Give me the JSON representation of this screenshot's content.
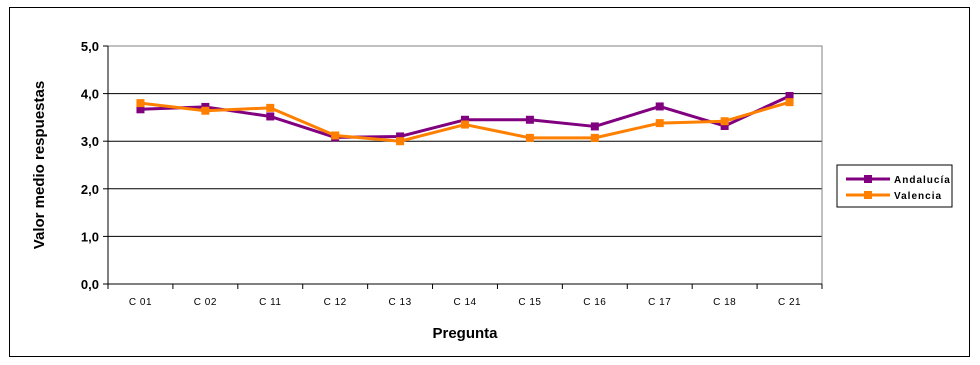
{
  "chart_data": {
    "type": "line",
    "title": "",
    "xlabel": "Pregunta",
    "ylabel": "Valor medio respuestas",
    "categories": [
      "C 01",
      "C 02",
      "C 11",
      "C 12",
      "C 13",
      "C 14",
      "C 15",
      "C 16",
      "C 17",
      "C 18",
      "C 21"
    ],
    "ylim": [
      0,
      5
    ],
    "yticks": [
      "0,0",
      "1,0",
      "2,0",
      "3,0",
      "4,0",
      "5,0"
    ],
    "grid": true,
    "legend_position": "right",
    "series": [
      {
        "name": "Andalucía",
        "color": "#800080",
        "marker": "square",
        "values": [
          3.67,
          3.72,
          3.52,
          3.08,
          3.1,
          3.45,
          3.45,
          3.31,
          3.73,
          3.32,
          3.95
        ]
      },
      {
        "name": "Valencia",
        "color": "#ff8000",
        "marker": "square",
        "values": [
          3.8,
          3.64,
          3.7,
          3.12,
          3.0,
          3.35,
          3.07,
          3.07,
          3.38,
          3.42,
          3.82
        ]
      }
    ]
  }
}
